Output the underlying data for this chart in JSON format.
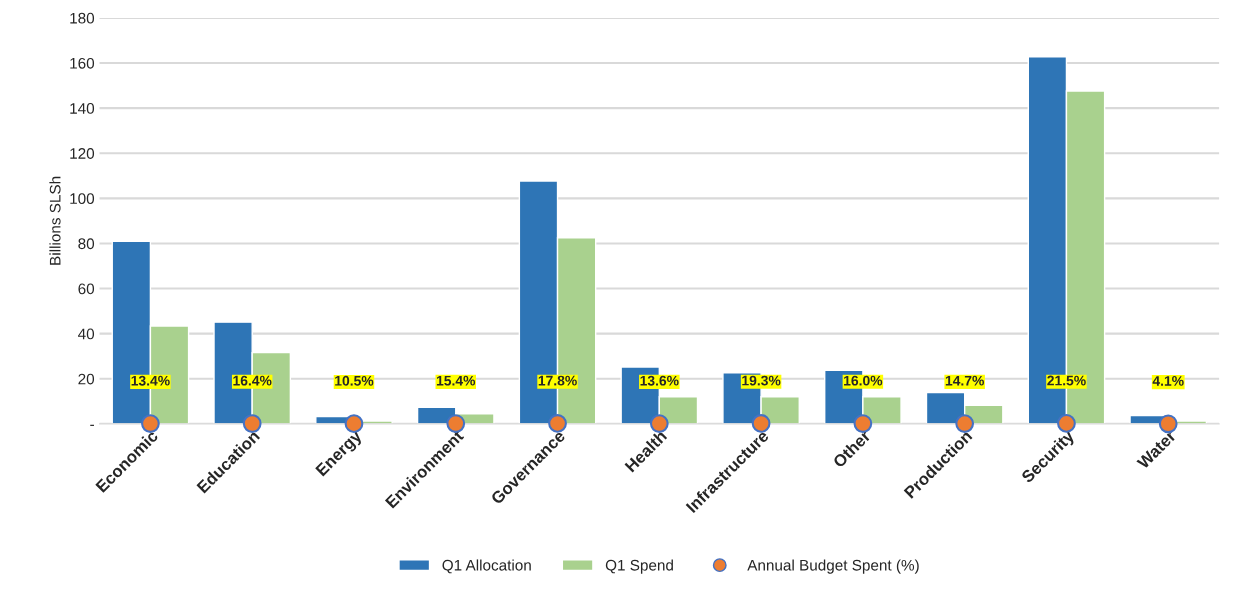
{
  "chart_data": {
    "type": "bar",
    "ylabel": "Billions SLSh",
    "categories": [
      "Economic",
      "Education",
      "Energy",
      "Environment",
      "Governance",
      "Health",
      "Infrastructure",
      "Other",
      "Production",
      "Security",
      "Water"
    ],
    "series": [
      {
        "name": "Q1 Allocation",
        "color": "#2e75b6",
        "values": [
          80.9,
          45.1,
          3.2,
          7.3,
          107.7,
          25.2,
          22.6,
          23.7,
          13.9,
          162.8,
          3.7
        ]
      },
      {
        "name": "Q1 Spend",
        "color": "#a9d18e",
        "values": [
          43.4,
          31.6,
          1.3,
          4.5,
          82.5,
          12,
          12,
          12,
          8.2,
          147.6,
          1.3
        ]
      },
      {
        "name": "Annual Budget Spent (%)",
        "type": "scatter",
        "marker": "circle",
        "color": "#ed7d31",
        "values": [
          0.134,
          0.164,
          0.105,
          0.154,
          0.178,
          0.136,
          0.193,
          0.16,
          0.147,
          0.215,
          0.041
        ],
        "value_labels": [
          "13.4%",
          "16.4%",
          "10.5%",
          "15.4%",
          "17.8%",
          "13.6%",
          "19.3%",
          "16.0%",
          "14.7%",
          "21.5%",
          "4.1%"
        ]
      }
    ],
    "ylim": [
      0,
      180
    ],
    "yticks": [
      {
        "value": 0,
        "label": "-"
      },
      20,
      40,
      60,
      80,
      100,
      120,
      140,
      160,
      180
    ],
    "grid": "y",
    "legend": "bottom"
  }
}
